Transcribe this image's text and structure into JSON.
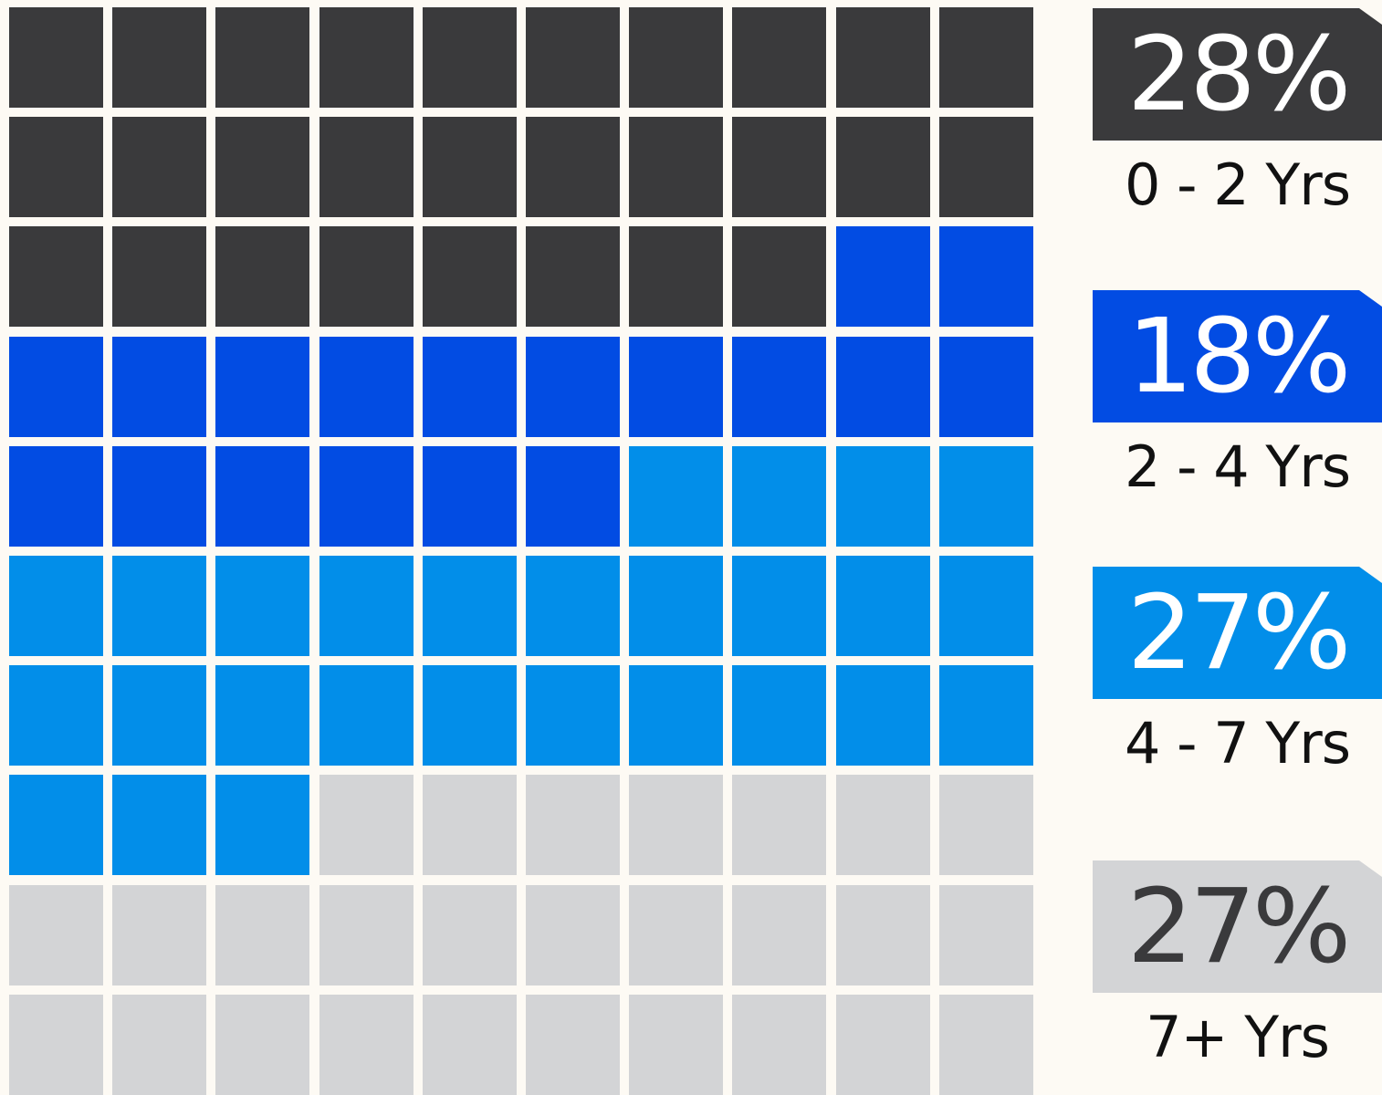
{
  "chart_data": {
    "type": "waffle",
    "grid": {
      "rows": 10,
      "cols": 10,
      "total": 100
    },
    "series": [
      {
        "name": "0 - 2 Yrs",
        "value": 28,
        "label": "28%",
        "color": "#3a3a3c",
        "text_color": "#ffffff"
      },
      {
        "name": "2 - 4 Yrs",
        "value": 18,
        "label": "18%",
        "color": "#024ce3",
        "text_color": "#ffffff"
      },
      {
        "name": "4 - 7 Yrs",
        "value": 27,
        "label": "27%",
        "color": "#028ee9",
        "text_color": "#ffffff"
      },
      {
        "name": "7+ Yrs",
        "value": 27,
        "label": "27%",
        "color": "#d3d4d6",
        "text_color": "#3a3a3c"
      }
    ]
  }
}
